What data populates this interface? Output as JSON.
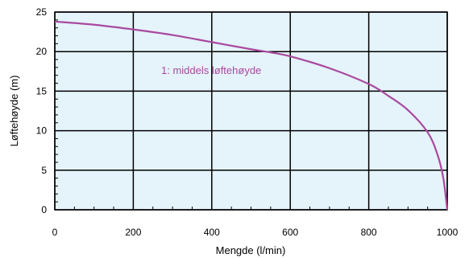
{
  "chart_data": {
    "type": "line",
    "title": "",
    "xlabel": "Mengde (l/min)",
    "ylabel": "Løftehøyde (m)",
    "xlim": [
      0,
      1000
    ],
    "ylim": [
      0,
      25
    ],
    "xticks": [
      0,
      200,
      400,
      600,
      800,
      1000
    ],
    "yticks": [
      0,
      5,
      10,
      15,
      20,
      25
    ],
    "x_minor_step": 50,
    "y_minor_step": 1,
    "grid": true,
    "background_color": "#e5f3fb",
    "grid_color": "#000000",
    "series": [
      {
        "name": "1: middels løftehøyde",
        "color": "#a9499e",
        "x": [
          0,
          100,
          200,
          300,
          400,
          500,
          550,
          600,
          700,
          800,
          850,
          900,
          950,
          975,
          990,
          1000
        ],
        "y": [
          23.8,
          23.4,
          22.8,
          22.1,
          21.2,
          20.3,
          19.9,
          19.4,
          17.9,
          15.9,
          14.4,
          12.6,
          9.8,
          7.0,
          4.0,
          0
        ]
      }
    ]
  }
}
